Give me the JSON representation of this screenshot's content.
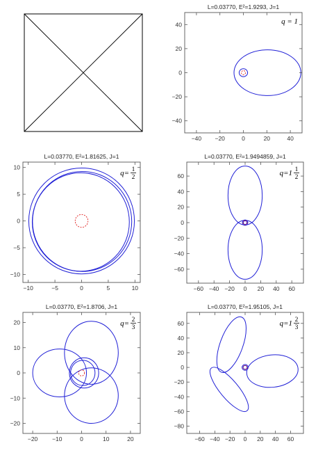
{
  "chart_data": [
    {
      "type": "blank",
      "title": "",
      "note_visual": "empty framed panel with two diagonal lines"
    },
    {
      "type": "orbit",
      "title": "L=0.03770, E²=1.9293, J=1",
      "q_label": {
        "var": "q",
        "whole": "1",
        "num": "",
        "den": ""
      },
      "xlim": [
        -50,
        50
      ],
      "ylim": [
        -50,
        50
      ],
      "xticks": [
        -40,
        -20,
        0,
        20,
        40
      ],
      "yticks": [
        -40,
        -20,
        0,
        20,
        40
      ],
      "horizon_radius": 1.2,
      "loops": [
        {
          "cx": 20.5,
          "cy": 0,
          "rx": 28.5,
          "ry": 19,
          "rot": 0
        },
        {
          "cx": 0,
          "cy": 0,
          "rx": 3.6,
          "ry": 3.3,
          "rot": 0
        }
      ]
    },
    {
      "type": "orbit",
      "title": "L=0.03770, E²=1.81625, J=1",
      "q_label": {
        "var": "q",
        "whole": "",
        "num": "1",
        "den": "2"
      },
      "xlim": [
        -11,
        11
      ],
      "ylim": [
        -11.5,
        11
      ],
      "xticks": [
        -10,
        -5,
        0,
        5,
        10
      ],
      "yticks": [
        -10,
        -5,
        0,
        5,
        10
      ],
      "horizon_radius": 1.2,
      "loops": [
        {
          "cx": 0,
          "cy": 0,
          "rx": 9.9,
          "ry": 9.9,
          "rot": 0
        },
        {
          "cx": 0.1,
          "cy": -0.1,
          "rx": 9.3,
          "ry": 9.35,
          "rot": 0
        },
        {
          "cx": -0.15,
          "cy": -0.2,
          "rx": 9.1,
          "ry": 9.2,
          "rot": 0
        }
      ]
    },
    {
      "type": "orbit",
      "title": "L=0.03770, E²=1.9494859, J=1",
      "q_label": {
        "var": "q",
        "whole": "1",
        "num": "1",
        "den": "2"
      },
      "xlim": [
        -75,
        75
      ],
      "ylim": [
        -78,
        78
      ],
      "xticks": [
        -60,
        -40,
        -20,
        0,
        20,
        40,
        60
      ],
      "yticks": [
        -60,
        -40,
        -20,
        0,
        20,
        40,
        60
      ],
      "horizon_radius": 1.2,
      "loops": [
        {
          "cx": 0,
          "cy": 35,
          "rx": 22,
          "ry": 38,
          "rot": 0
        },
        {
          "cx": 0,
          "cy": -35,
          "rx": 22,
          "ry": 38,
          "rot": 0
        },
        {
          "cx": 0,
          "cy": 0,
          "rx": 3.5,
          "ry": 3.5,
          "rot": 0
        },
        {
          "cx": 0,
          "cy": 0,
          "rx": 2.3,
          "ry": 2.3,
          "rot": 0
        }
      ]
    },
    {
      "type": "orbit",
      "title": "L=0.03770, E²=1.8706, J=1",
      "q_label": {
        "var": "q",
        "whole": "",
        "num": "2",
        "den": "3"
      },
      "xlim": [
        -24,
        24
      ],
      "ylim": [
        -24,
        24
      ],
      "xticks": [
        -20,
        -10,
        0,
        10,
        20
      ],
      "yticks": [
        -20,
        -10,
        0,
        10,
        20
      ],
      "horizon_radius": 1.2,
      "loops": [
        {
          "cx": 4,
          "cy": 8,
          "rx": 11,
          "ry": 12.5,
          "rot": 0
        },
        {
          "cx": -9,
          "cy": 0,
          "rx": 11,
          "ry": 9.5,
          "rot": 0
        },
        {
          "cx": 4,
          "cy": -9,
          "rx": 11,
          "ry": 11,
          "rot": 0
        },
        {
          "cx": 1,
          "cy": 0,
          "rx": 6,
          "ry": 6,
          "rot": 0
        },
        {
          "cx": 0.5,
          "cy": 0,
          "rx": 5,
          "ry": 5,
          "rot": 0
        }
      ]
    },
    {
      "type": "orbit",
      "title": "L=0.03770, E²=1.95105, J=1",
      "q_label": {
        "var": "q",
        "whole": "1",
        "num": "2",
        "den": "3"
      },
      "xlim": [
        -77,
        77
      ],
      "ylim": [
        -90,
        75
      ],
      "xticks": [
        -60,
        -40,
        -20,
        0,
        20,
        40,
        60
      ],
      "yticks": [
        -80,
        -60,
        -40,
        -20,
        0,
        20,
        40,
        60
      ],
      "horizon_radius": 1.2,
      "loops": [
        {
          "cx": -18,
          "cy": 31,
          "rx": 15,
          "ry": 40,
          "rot": -20
        },
        {
          "cx": 36,
          "cy": -5,
          "rx": 34,
          "ry": 22,
          "rot": 6
        },
        {
          "cx": -21,
          "cy": -30,
          "rx": 12,
          "ry": 38,
          "rot": 40
        },
        {
          "cx": 0,
          "cy": 0,
          "rx": 4,
          "ry": 4,
          "rot": 0
        },
        {
          "cx": 0,
          "cy": 0,
          "rx": 2.6,
          "ry": 2.6,
          "rot": 0
        }
      ]
    }
  ]
}
